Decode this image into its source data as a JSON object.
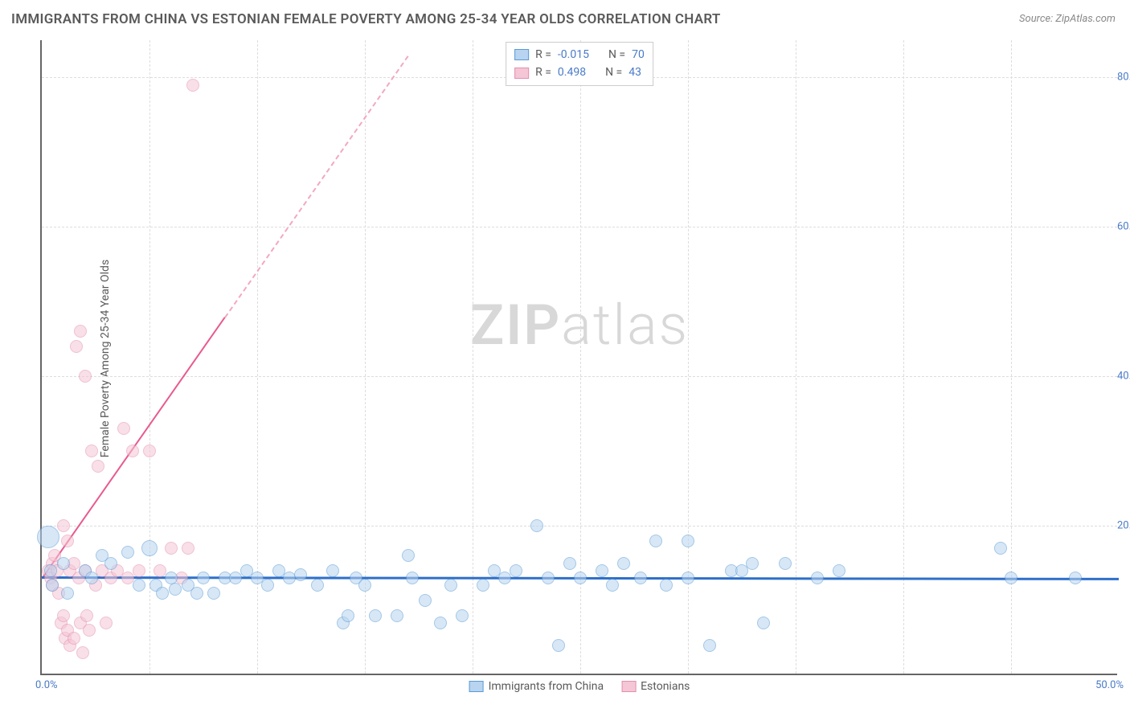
{
  "title": "IMMIGRANTS FROM CHINA VS ESTONIAN FEMALE POVERTY AMONG 25-34 YEAR OLDS CORRELATION CHART",
  "source": "Source: ZipAtlas.com",
  "ylabel": "Female Poverty Among 25-34 Year Olds",
  "watermark_a": "ZIP",
  "watermark_b": "atlas",
  "chart": {
    "type": "scatter",
    "background_color": "#ffffff",
    "grid_color": "#dddddd",
    "axis_color": "#666666",
    "tick_label_color": "#4a7bc8",
    "label_color": "#5a5a5a",
    "title_fontsize": 17,
    "label_fontsize": 14,
    "tick_fontsize": 13,
    "xlim": [
      0,
      50
    ],
    "ylim": [
      0,
      85
    ],
    "xtick_labels": [
      "0.0%",
      "50.0%"
    ],
    "ytick_values": [
      20,
      40,
      60,
      80
    ],
    "ytick_labels": [
      "20.0%",
      "40.0%",
      "60.0%",
      "80.0%"
    ],
    "xgrid_values": [
      5,
      10,
      15,
      20,
      25,
      30,
      35,
      40,
      45
    ]
  },
  "series": {
    "blue": {
      "label": "Immigrants from China",
      "fill": "#b8d4f0",
      "stroke": "#5a9bd5",
      "fill_opacity": 0.55,
      "marker_radius": 8,
      "r_value": "-0.015",
      "n_value": "70",
      "trend": {
        "x1": 0,
        "y1": 13.2,
        "x2": 50,
        "y2": 13.0,
        "color": "#2e6fc9",
        "width": 3
      },
      "points": [
        [
          0.3,
          18.5,
          14
        ],
        [
          0.4,
          14,
          8
        ],
        [
          0.5,
          12,
          8
        ],
        [
          1.0,
          15,
          8
        ],
        [
          1.2,
          11,
          8
        ],
        [
          2.0,
          14,
          8
        ],
        [
          2.3,
          13,
          8
        ],
        [
          2.8,
          16,
          8
        ],
        [
          3.2,
          15,
          8
        ],
        [
          4.0,
          16.5,
          8
        ],
        [
          4.5,
          12,
          8
        ],
        [
          5.0,
          17,
          10
        ],
        [
          5.3,
          12,
          8
        ],
        [
          5.6,
          11,
          8
        ],
        [
          6.0,
          13,
          8
        ],
        [
          6.2,
          11.5,
          8
        ],
        [
          6.8,
          12,
          8
        ],
        [
          7.2,
          11,
          8
        ],
        [
          7.5,
          13,
          8
        ],
        [
          8.0,
          11,
          8
        ],
        [
          8.5,
          13,
          8
        ],
        [
          9.0,
          13,
          8
        ],
        [
          9.5,
          14,
          8
        ],
        [
          10.0,
          13,
          8
        ],
        [
          10.5,
          12,
          8
        ],
        [
          11.0,
          14,
          8
        ],
        [
          11.5,
          13,
          8
        ],
        [
          12.0,
          13.5,
          8
        ],
        [
          12.8,
          12,
          8
        ],
        [
          13.5,
          14,
          8
        ],
        [
          14.0,
          7,
          8
        ],
        [
          14.2,
          8,
          8
        ],
        [
          14.6,
          13,
          8
        ],
        [
          15.0,
          12,
          8
        ],
        [
          15.5,
          8,
          8
        ],
        [
          16.5,
          8,
          8
        ],
        [
          17.0,
          16,
          8
        ],
        [
          17.2,
          13,
          8
        ],
        [
          17.8,
          10,
          8
        ],
        [
          18.5,
          7,
          8
        ],
        [
          19.0,
          12,
          8
        ],
        [
          19.5,
          8,
          8
        ],
        [
          20.5,
          12,
          8
        ],
        [
          21.0,
          14,
          8
        ],
        [
          21.5,
          13,
          8
        ],
        [
          22.0,
          14,
          8
        ],
        [
          23.0,
          20,
          8
        ],
        [
          23.5,
          13,
          8
        ],
        [
          24.0,
          4,
          8
        ],
        [
          24.5,
          15,
          8
        ],
        [
          25.0,
          13,
          8
        ],
        [
          26.0,
          14,
          8
        ],
        [
          26.5,
          12,
          8
        ],
        [
          27.0,
          15,
          8
        ],
        [
          27.8,
          13,
          8
        ],
        [
          28.5,
          18,
          8
        ],
        [
          29.0,
          12,
          8
        ],
        [
          30.0,
          13,
          8
        ],
        [
          30.0,
          18,
          8
        ],
        [
          31.0,
          4,
          8
        ],
        [
          32.0,
          14,
          8
        ],
        [
          32.5,
          14,
          8
        ],
        [
          33.0,
          15,
          8
        ],
        [
          33.5,
          7,
          8
        ],
        [
          34.5,
          15,
          8
        ],
        [
          36.0,
          13,
          8
        ],
        [
          37.0,
          14,
          8
        ],
        [
          44.5,
          17,
          8
        ],
        [
          45.0,
          13,
          8
        ],
        [
          48.0,
          13,
          8
        ]
      ]
    },
    "pink": {
      "label": "Estonians",
      "fill": "#f5c6d5",
      "stroke": "#e38fb0",
      "fill_opacity": 0.55,
      "marker_radius": 8,
      "r_value": "0.498",
      "n_value": "43",
      "trend_solid": {
        "x1": 0,
        "y1": 13,
        "x2": 8.5,
        "y2": 48,
        "color": "#e85a8f",
        "width": 2
      },
      "trend_dash": {
        "x1": 8.5,
        "y1": 48,
        "x2": 17,
        "y2": 83,
        "color": "#f2a8c2",
        "width": 2
      },
      "points": [
        [
          0.3,
          14,
          8
        ],
        [
          0.4,
          13,
          8
        ],
        [
          0.5,
          15,
          8
        ],
        [
          0.5,
          12,
          8
        ],
        [
          0.6,
          16,
          8
        ],
        [
          0.7,
          14,
          8
        ],
        [
          0.8,
          11,
          8
        ],
        [
          0.9,
          7,
          8
        ],
        [
          1.0,
          8,
          8
        ],
        [
          1.0,
          20,
          8
        ],
        [
          1.1,
          5,
          8
        ],
        [
          1.2,
          6,
          8
        ],
        [
          1.2,
          18,
          8
        ],
        [
          1.3,
          14,
          8
        ],
        [
          1.3,
          4,
          8
        ],
        [
          1.5,
          5,
          8
        ],
        [
          1.5,
          15,
          8
        ],
        [
          1.6,
          44,
          8
        ],
        [
          1.7,
          13,
          8
        ],
        [
          1.8,
          46,
          8
        ],
        [
          1.8,
          7,
          8
        ],
        [
          1.9,
          3,
          8
        ],
        [
          2.0,
          14,
          8
        ],
        [
          2.0,
          40,
          8
        ],
        [
          2.1,
          8,
          8
        ],
        [
          2.2,
          6,
          8
        ],
        [
          2.3,
          30,
          8
        ],
        [
          2.5,
          12,
          8
        ],
        [
          2.6,
          28,
          8
        ],
        [
          2.8,
          14,
          8
        ],
        [
          3.0,
          7,
          8
        ],
        [
          3.2,
          13,
          8
        ],
        [
          3.5,
          14,
          8
        ],
        [
          3.8,
          33,
          8
        ],
        [
          4.0,
          13,
          8
        ],
        [
          4.2,
          30,
          8
        ],
        [
          4.5,
          14,
          8
        ],
        [
          5.0,
          30,
          8
        ],
        [
          5.5,
          14,
          8
        ],
        [
          6.0,
          17,
          8
        ],
        [
          6.5,
          13,
          8
        ],
        [
          6.8,
          17,
          8
        ],
        [
          7.0,
          79,
          8
        ]
      ]
    }
  },
  "legend_top": {
    "r_label": "R =",
    "n_label": "N ="
  },
  "legend_bottom": {
    "blue_label": "Immigrants from China",
    "pink_label": "Estonians"
  }
}
